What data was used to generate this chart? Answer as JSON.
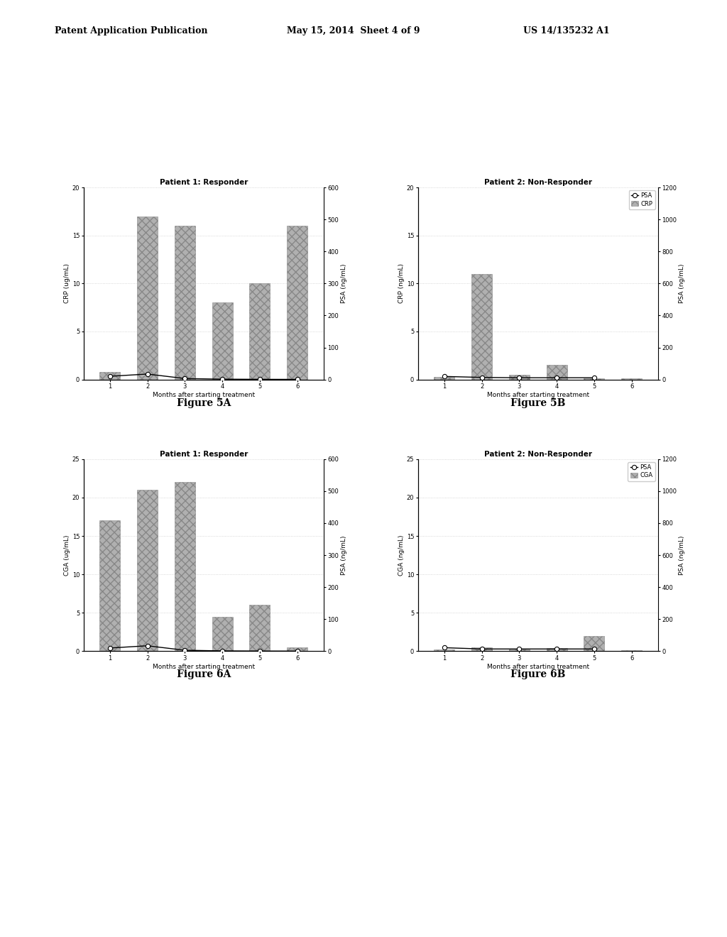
{
  "fig5a": {
    "title": "Patient 1: Responder",
    "months": [
      1,
      2,
      3,
      4,
      5,
      6
    ],
    "crp_bars": [
      0.8,
      17,
      16,
      8,
      10,
      16
    ],
    "psa_months": [
      1,
      2,
      3,
      4,
      5,
      6
    ],
    "psa_line": [
      10,
      17,
      3,
      1,
      0.5,
      0.3
    ],
    "crp_ylim": [
      0,
      20
    ],
    "psa_ylim": [
      0,
      600
    ],
    "crp_yticks": [
      0,
      5,
      10,
      15,
      20
    ],
    "psa_yticks": [
      0,
      100,
      200,
      300,
      400,
      500,
      600
    ],
    "ylabel_left": "CRP (ug/mL)",
    "ylabel_right": "PSA (ng/mL)",
    "xlabel": "Months after starting treatment"
  },
  "fig5b": {
    "title": "Patient 2: Non-Responder",
    "months": [
      1,
      2,
      3,
      4,
      5,
      6
    ],
    "crp_bars": [
      0.3,
      11,
      0.5,
      1.5,
      0.1,
      0.1
    ],
    "psa_months": [
      1,
      2,
      3,
      4,
      5
    ],
    "psa_line": [
      19,
      13,
      11,
      11,
      11
    ],
    "crp_ylim": [
      0,
      20
    ],
    "psa_ylim": [
      0,
      1200
    ],
    "crp_yticks": [
      0,
      5,
      10,
      15,
      20
    ],
    "psa_yticks": [
      0,
      200,
      400,
      600,
      800,
      1000,
      1200
    ],
    "ylabel_left": "CRP (ng/mL)",
    "ylabel_right": "PSA (ng/mL)",
    "xlabel": "Months after starting treatment",
    "legend_labels": [
      "PSA",
      "CRP"
    ]
  },
  "fig6a": {
    "title": "Patient 1: Responder",
    "months": [
      1,
      2,
      3,
      4,
      5,
      6
    ],
    "cga_bars": [
      17,
      21,
      22,
      4.5,
      6,
      0.5
    ],
    "psa_months": [
      1,
      2,
      3,
      4,
      5,
      6
    ],
    "psa_line": [
      10,
      17,
      3,
      1,
      0.5,
      0.3
    ],
    "cga_ylim": [
      0,
      25
    ],
    "psa_ylim": [
      0,
      600
    ],
    "cga_yticks": [
      0,
      5,
      10,
      15,
      20,
      25
    ],
    "psa_yticks": [
      0,
      100,
      200,
      300,
      400,
      500,
      600
    ],
    "ylabel_left": "CGA (ug/mL)",
    "ylabel_right": "PSA (ng/mL)",
    "xlabel": "Months after starting treatment"
  },
  "fig6b": {
    "title": "Patient 2: Non-Responder",
    "months": [
      1,
      2,
      3,
      4,
      5,
      6
    ],
    "cga_bars": [
      0.2,
      0.5,
      0.3,
      0.4,
      2.0,
      0.1
    ],
    "psa_months": [
      1,
      2,
      3,
      4,
      5
    ],
    "psa_line": [
      22,
      14,
      14,
      14,
      14
    ],
    "cga_ylim": [
      0,
      25
    ],
    "psa_ylim": [
      0,
      1200
    ],
    "cga_yticks": [
      0,
      5,
      10,
      15,
      20,
      25
    ],
    "psa_yticks": [
      0,
      200,
      400,
      600,
      800,
      1000,
      1200
    ],
    "ylabel_left": "CGA (ng/mL)",
    "ylabel_right": "PSA (ng/mL)",
    "xlabel": "Months after starting treatment",
    "legend_labels": [
      "PSA",
      "CGA"
    ]
  },
  "bar_color": "#b0b0b0",
  "bar_hatch": "xxx",
  "line_color": "#000000",
  "grid_color": "#cccccc",
  "grid_style": ":",
  "title_fontsize": 7.5,
  "label_fontsize": 6.5,
  "tick_fontsize": 6,
  "caption_fontsize": 10
}
